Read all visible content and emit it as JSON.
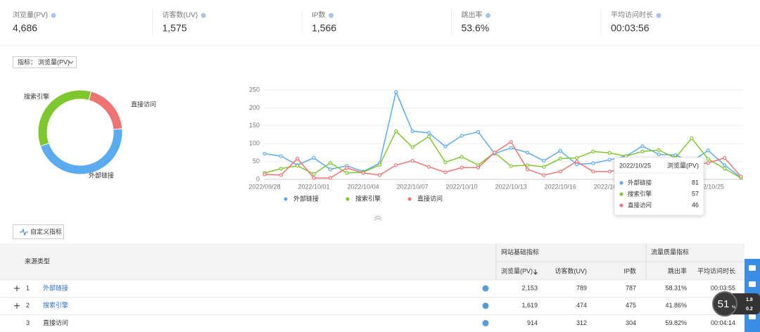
{
  "metrics": [
    {
      "label": "浏览量(PV)",
      "value": "4,686"
    },
    {
      "label": "访客数(UV)",
      "value": "1,575"
    },
    {
      "label": "IP数",
      "value": "1,566"
    },
    {
      "label": "跳出率",
      "value": "53.6%"
    },
    {
      "label": "平均访问时长",
      "value": "00:03:56"
    }
  ],
  "selector": {
    "label": "指标：",
    "value": "浏览量(PV)"
  },
  "chart_data": [
    {
      "type": "pie",
      "categories": [
        "外部链接",
        "搜索引擎",
        "直接访问"
      ],
      "values": [
        2153,
        1619,
        914
      ],
      "colors": [
        "#5aabf0",
        "#7ec82e",
        "#ef7373"
      ]
    },
    {
      "type": "line",
      "categories": [
        "2022/09/28",
        null,
        null,
        "2022/10/01",
        null,
        null,
        "2022/10/04",
        null,
        null,
        "2022/10/07",
        null,
        null,
        "2022/10/10",
        null,
        null,
        "2022/10/13",
        null,
        null,
        "2022/10/16",
        null,
        null,
        "2022/10/19",
        null,
        null,
        "2022/10/22",
        null,
        null,
        "2022/10/25",
        null,
        null
      ],
      "series": [
        {
          "name": "外部链接",
          "color": "#5aabf0",
          "values": [
            72,
            65,
            40,
            60,
            28,
            38,
            22,
            45,
            245,
            135,
            130,
            92,
            122,
            133,
            72,
            88,
            75,
            52,
            80,
            42,
            45,
            55,
            65,
            93,
            70,
            68,
            50,
            81,
            40,
            5
          ]
        },
        {
          "name": "搜索引擎",
          "color": "#7ec82e",
          "values": [
            18,
            30,
            38,
            15,
            46,
            18,
            20,
            40,
            135,
            90,
            120,
            48,
            63,
            40,
            75,
            37,
            40,
            35,
            58,
            60,
            78,
            74,
            65,
            78,
            82,
            60,
            115,
            57,
            30,
            4
          ]
        },
        {
          "name": "直接访问",
          "color": "#ef7373",
          "values": [
            14,
            12,
            58,
            4,
            4,
            32,
            18,
            12,
            40,
            52,
            35,
            20,
            33,
            33,
            75,
            105,
            28,
            12,
            22,
            50,
            22,
            22,
            30,
            42,
            38,
            45,
            40,
            46,
            60,
            8
          ]
        }
      ],
      "ylim": [
        0,
        250
      ],
      "yticks": [
        0,
        50,
        100,
        150,
        200,
        250
      ],
      "grid": true,
      "tooltip": {
        "title": "2022/10/25",
        "metric": "浏览量(PV)",
        "index": 27
      }
    }
  ],
  "button": "自定义指标",
  "table": {
    "groups": [
      "来源类型",
      "网站基础指标",
      "流量质量指标"
    ],
    "columns": [
      "浏览量(PV)",
      "访客数(UV)",
      "IP数",
      "跳出率",
      "平均访问时长"
    ],
    "rows": [
      {
        "index": "1",
        "name": "外部链接",
        "cells": [
          "2,153",
          "789",
          "787",
          "58.31%",
          "00:03:55"
        ]
      },
      {
        "index": "2",
        "name": "搜索引擎",
        "cells": [
          "1,619",
          "474",
          "475",
          "41.86%",
          null
        ]
      },
      {
        "index": "3",
        "name": "直接访问",
        "cells": [
          "914",
          "312",
          "304",
          "59.82%",
          "00:04:14"
        ]
      }
    ]
  },
  "widget": {
    "load": "51",
    "unit": "%",
    "up": "1.8",
    "down": "0.2"
  }
}
